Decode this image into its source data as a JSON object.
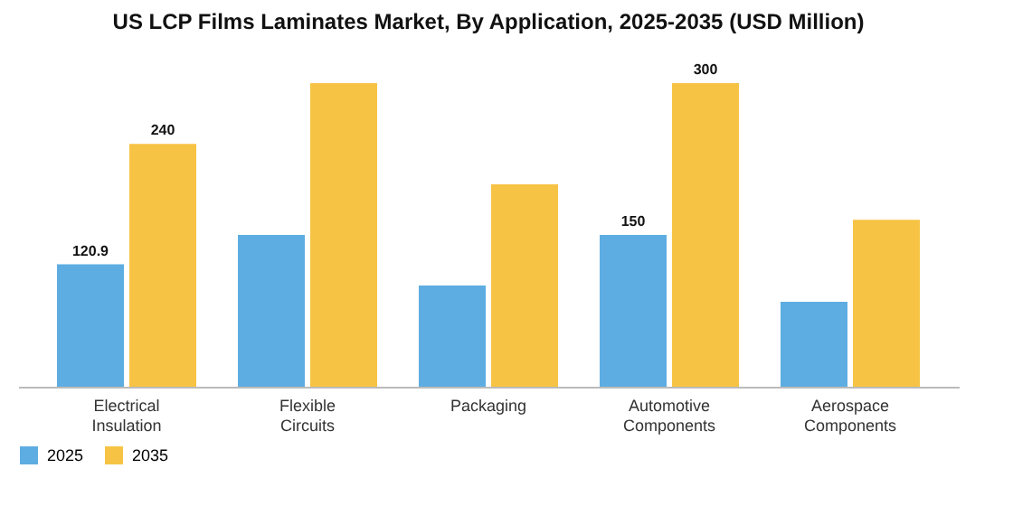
{
  "chart_data": {
    "type": "bar",
    "title": "US LCP Films Laminates Market, By Application, 2025-2035 (USD Million)",
    "categories": [
      "Electrical Insulation",
      "Flexible Circuits",
      "Packaging",
      "Automotive Components",
      "Aerospace Components"
    ],
    "series": [
      {
        "name": "2025",
        "color": "#5dade2",
        "values": [
          120.9,
          150,
          100,
          150,
          84
        ],
        "value_labels": [
          "120.9",
          null,
          null,
          "150",
          null
        ]
      },
      {
        "name": "2035",
        "color": "#f7c344",
        "values": [
          240,
          300,
          200,
          300,
          165
        ],
        "value_labels": [
          "240",
          null,
          null,
          "300",
          null
        ]
      }
    ],
    "ylim": [
      0,
      300
    ],
    "legend": "bottom"
  }
}
